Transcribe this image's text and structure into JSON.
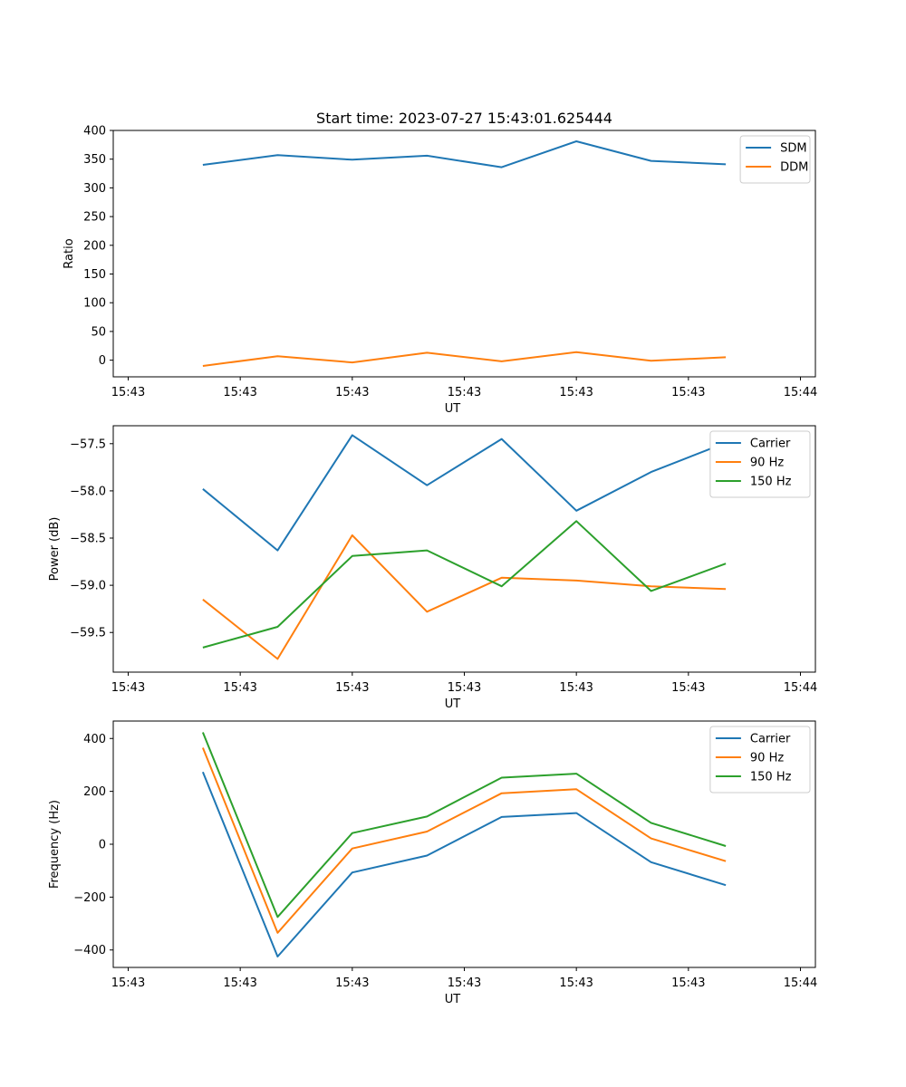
{
  "chart_data": [
    {
      "type": "line",
      "panel": "ratio",
      "title": "Start time: 2023-07-27 15:43:01.625444",
      "xlabel": "UT",
      "ylabel": "Ratio",
      "x": [
        1,
        2,
        3,
        4,
        5,
        6,
        7,
        8
      ],
      "xlim": [
        -0.2,
        9.2
      ],
      "xticks": [
        0,
        1.5,
        3,
        4.5,
        6,
        7.5,
        9
      ],
      "xtick_labels": [
        "15:43",
        "15:43",
        "15:43",
        "15:43",
        "15:43",
        "15:43",
        "15:44"
      ],
      "ylim": [
        -29,
        400
      ],
      "yticks": [
        0,
        50,
        100,
        150,
        200,
        250,
        300,
        350,
        400
      ],
      "ytick_labels": [
        "0",
        "50",
        "100",
        "150",
        "200",
        "250",
        "300",
        "350",
        "400"
      ],
      "legend_position": "top-right",
      "series": [
        {
          "name": "SDM",
          "color": "#1f77b4",
          "values": [
            340,
            357,
            349,
            356,
            336,
            381,
            347,
            341
          ]
        },
        {
          "name": "DDM",
          "color": "#ff7f0e",
          "values": [
            -10,
            7,
            -4,
            13,
            -2,
            14,
            -1,
            5
          ]
        }
      ]
    },
    {
      "type": "line",
      "panel": "power",
      "title": "",
      "xlabel": "UT",
      "ylabel": "Power (dB)",
      "x": [
        1,
        2,
        3,
        4,
        5,
        6,
        7,
        8
      ],
      "xlim": [
        -0.2,
        9.2
      ],
      "xticks": [
        0,
        1.5,
        3,
        4.5,
        6,
        7.5,
        9
      ],
      "xtick_labels": [
        "15:43",
        "15:43",
        "15:43",
        "15:43",
        "15:43",
        "15:43",
        "15:44"
      ],
      "ylim": [
        -59.92,
        -57.31
      ],
      "yticks": [
        -59.5,
        -59.0,
        -58.5,
        -58.0,
        -57.5
      ],
      "ytick_labels": [
        "−59.5",
        "−59.0",
        "−58.5",
        "−58.0",
        "−57.5"
      ],
      "legend_position": "top-right",
      "series": [
        {
          "name": "Carrier",
          "color": "#1f77b4",
          "values": [
            -57.98,
            -58.63,
            -57.41,
            -57.94,
            -57.45,
            -58.21,
            -57.8,
            -57.49
          ]
        },
        {
          "name": "90 Hz",
          "color": "#ff7f0e",
          "values": [
            -59.15,
            -59.78,
            -58.47,
            -59.28,
            -58.92,
            -58.95,
            -59.01,
            -59.04
          ]
        },
        {
          "name": "150 Hz",
          "color": "#2ca02c",
          "values": [
            -59.66,
            -59.44,
            -58.69,
            -58.63,
            -59.01,
            -58.32,
            -59.06,
            -58.77
          ]
        }
      ]
    },
    {
      "type": "line",
      "panel": "frequency",
      "title": "",
      "xlabel": "UT",
      "ylabel": "Frequency (Hz)",
      "x": [
        1,
        2,
        3,
        4,
        5,
        6,
        7,
        8
      ],
      "xlim": [
        -0.2,
        9.2
      ],
      "xticks": [
        0,
        1.5,
        3,
        4.5,
        6,
        7.5,
        9
      ],
      "xtick_labels": [
        "15:43",
        "15:43",
        "15:43",
        "15:43",
        "15:43",
        "15:43",
        "15:44"
      ],
      "ylim": [
        -466,
        466
      ],
      "yticks": [
        -400,
        -200,
        0,
        200,
        400
      ],
      "ytick_labels": [
        "−400",
        "−200",
        "0",
        "200",
        "400"
      ],
      "legend_position": "top-right",
      "series": [
        {
          "name": "Carrier",
          "color": "#1f77b4",
          "values": [
            273,
            -425,
            -107,
            -43,
            103,
            118,
            -68,
            -155
          ]
        },
        {
          "name": "90 Hz",
          "color": "#ff7f0e",
          "values": [
            365,
            -335,
            -16,
            48,
            193,
            208,
            22,
            -64
          ]
        },
        {
          "name": "150 Hz",
          "color": "#2ca02c",
          "values": [
            423,
            -275,
            42,
            105,
            252,
            267,
            81,
            -7
          ]
        }
      ]
    }
  ]
}
